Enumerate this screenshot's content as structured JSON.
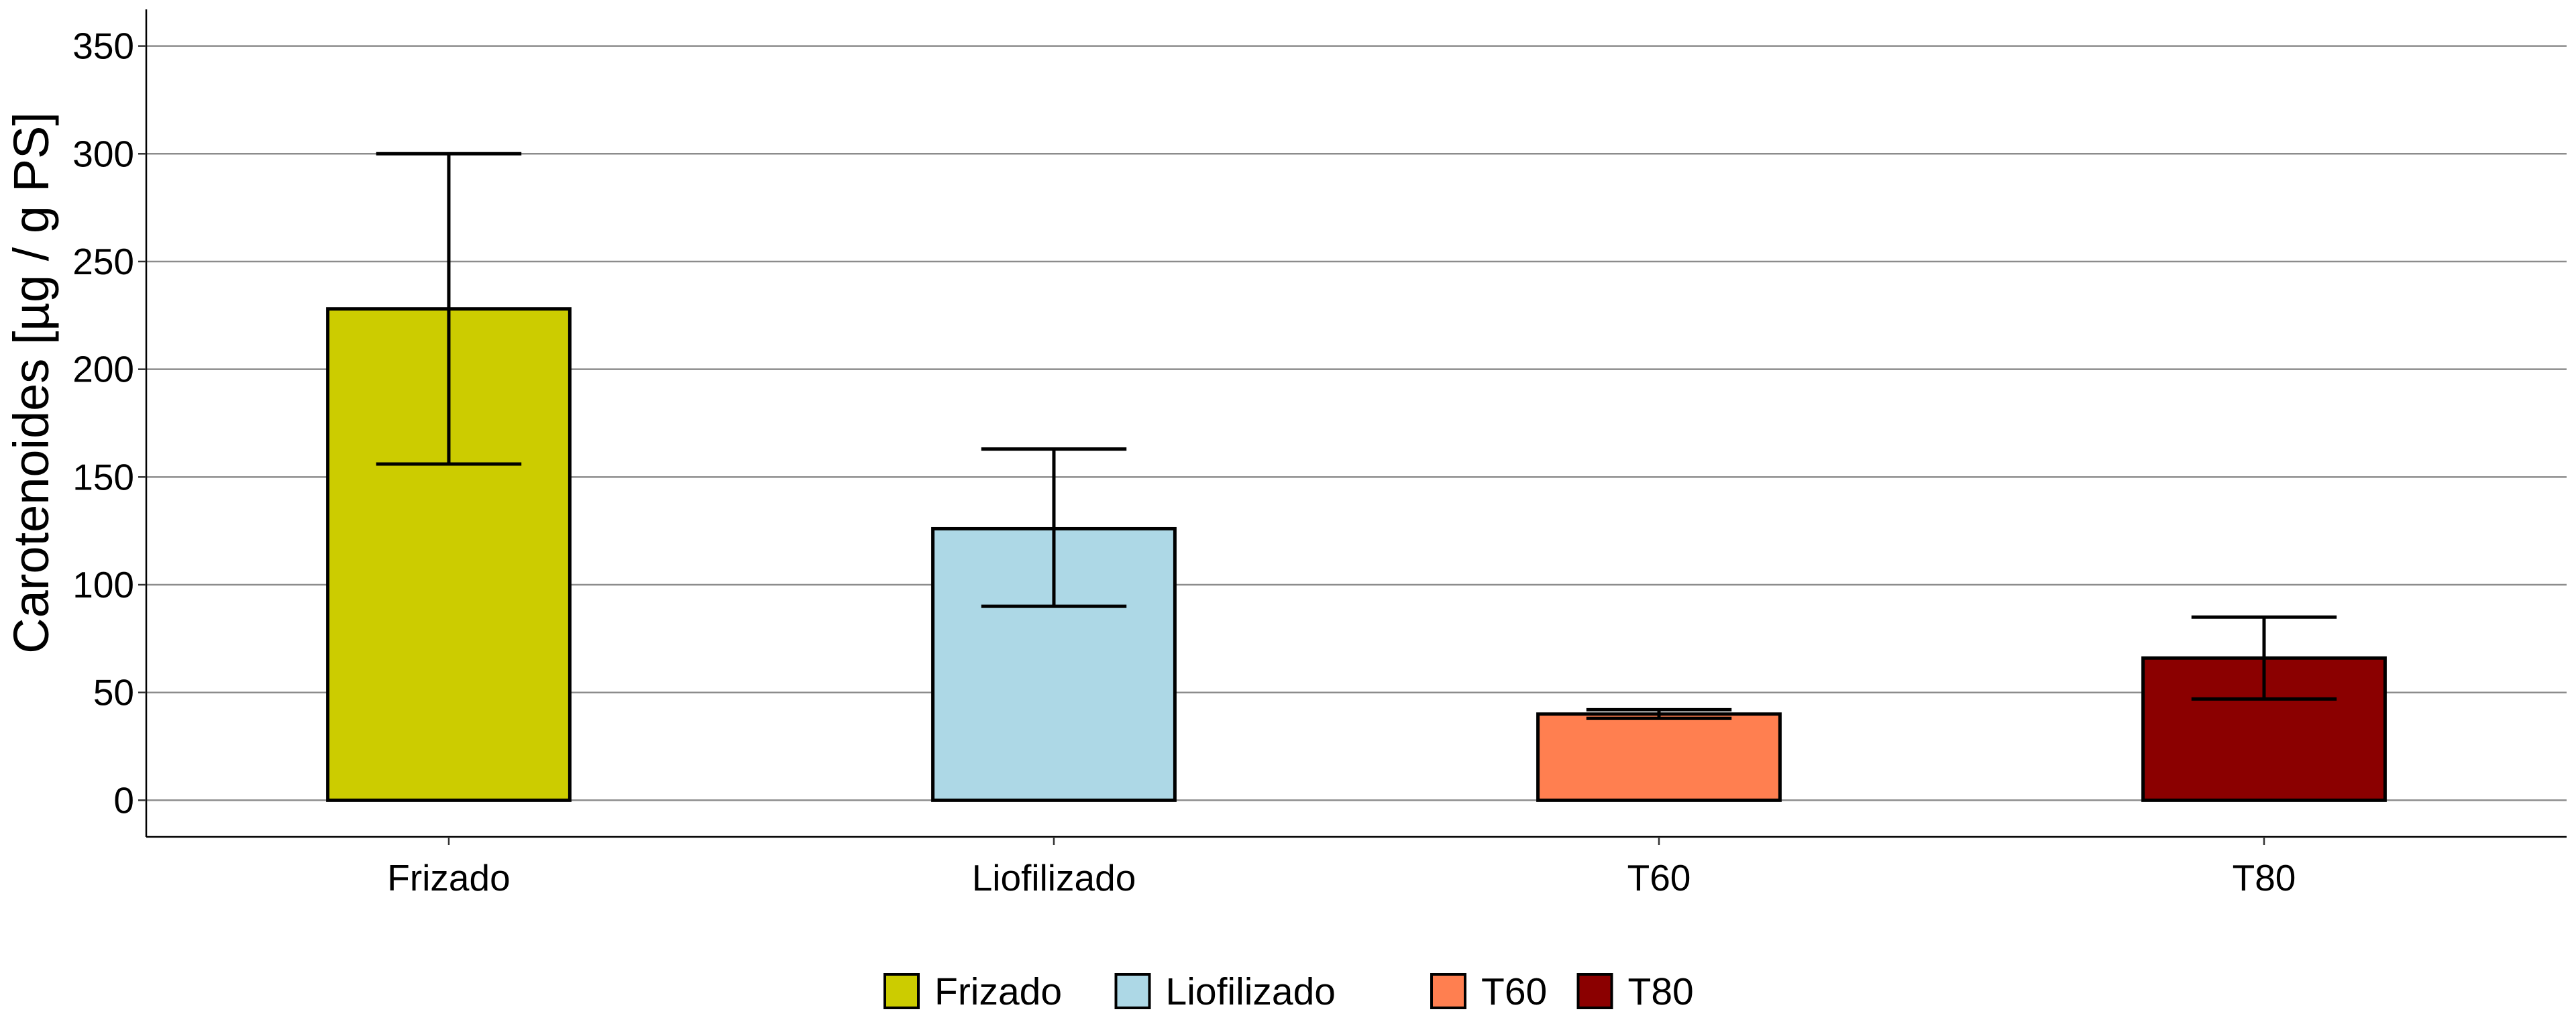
{
  "chart_data": {
    "type": "bar",
    "title": "",
    "xlabel": "",
    "ylabel": "Carotenoides [µg / g PS]",
    "categories": [
      "Frizado",
      "Liofilizado",
      "T60",
      "T80"
    ],
    "values": [
      228,
      126,
      40,
      66
    ],
    "error_low": [
      156,
      90,
      38,
      47
    ],
    "error_high": [
      300,
      163,
      42,
      85
    ],
    "colors": [
      "#CCCC00",
      "#ADD8E6",
      "#FF7F50",
      "#8B0000"
    ],
    "ylim": [
      -17,
      367
    ],
    "yticks": [
      0,
      50,
      100,
      150,
      200,
      250,
      300,
      350
    ],
    "grid": "horizontal major lines",
    "legend": {
      "position": "bottom",
      "entries": [
        "Frizado",
        "Liofilizado",
        "T60",
        "T80"
      ]
    }
  }
}
